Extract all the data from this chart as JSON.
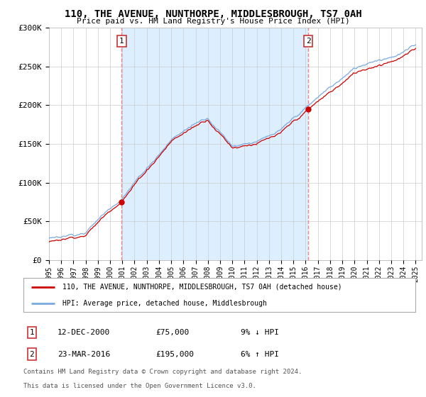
{
  "title": "110, THE AVENUE, NUNTHORPE, MIDDLESBROUGH, TS7 0AH",
  "subtitle": "Price paid vs. HM Land Registry's House Price Index (HPI)",
  "ylim": [
    0,
    300000
  ],
  "yticks": [
    0,
    50000,
    100000,
    150000,
    200000,
    250000,
    300000
  ],
  "ytick_labels": [
    "£0",
    "£50K",
    "£100K",
    "£150K",
    "£200K",
    "£250K",
    "£300K"
  ],
  "xlim_start": 1995,
  "xlim_end": 2025.5,
  "sale1_date_decimal": 2000.95,
  "sale1_price": 75000,
  "sale1_label_num": "1",
  "sale2_date_decimal": 2016.22,
  "sale2_price": 195000,
  "sale2_label_num": "2",
  "shade_color": "#ddeeff",
  "legend_line1": "110, THE AVENUE, NUNTHORPE, MIDDLESBROUGH, TS7 0AH (detached house)",
  "legend_line2": "HPI: Average price, detached house, Middlesbrough",
  "table_row1_num": "1",
  "table_row1_date": "12-DEC-2000",
  "table_row1_price": "£75,000",
  "table_row1_hpi": "9% ↓ HPI",
  "table_row2_num": "2",
  "table_row2_date": "23-MAR-2016",
  "table_row2_price": "£195,000",
  "table_row2_hpi": "6% ↑ HPI",
  "line_color_property": "#cc0000",
  "line_color_hpi": "#7aaadd",
  "vline_color": "#ee8888",
  "background_color": "#ffffff",
  "grid_color": "#cccccc",
  "footnote_line1": "Contains HM Land Registry data © Crown copyright and database right 2024.",
  "footnote_line2": "This data is licensed under the Open Government Licence v3.0."
}
